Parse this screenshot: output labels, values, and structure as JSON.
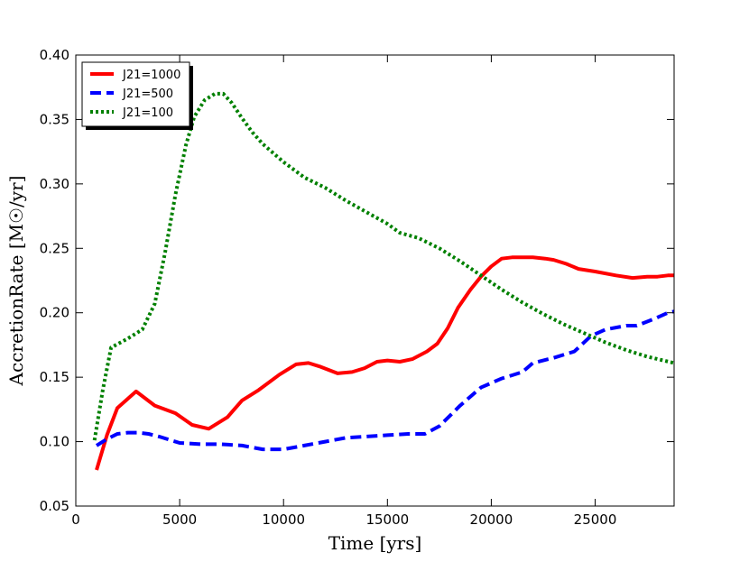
{
  "chart_data": {
    "type": "line",
    "xlabel": "Time [yrs]",
    "ylabel": "AccretionRate [M☉/yr]",
    "xlim": [
      0,
      28800
    ],
    "ylim": [
      0.05,
      0.4
    ],
    "xticks": [
      0,
      5000,
      10000,
      15000,
      20000,
      25000
    ],
    "xtick_labels": [
      "0",
      "5000",
      "10000",
      "15000",
      "20000",
      "25000"
    ],
    "yticks": [
      0.05,
      0.1,
      0.15,
      0.2,
      0.25,
      0.3,
      0.35,
      0.4
    ],
    "ytick_labels": [
      "0.05",
      "0.10",
      "0.15",
      "0.20",
      "0.25",
      "0.30",
      "0.35",
      "0.40"
    ],
    "grid": false,
    "legend_position": "top-left",
    "series": [
      {
        "name": "J21=1000",
        "color": "#ff0000",
        "style": "solid",
        "x": [
          1000,
          1500,
          2000,
          2900,
          3800,
          4800,
          5600,
          6400,
          7300,
          8000,
          8800,
          9800,
          10600,
          11200,
          11800,
          12600,
          13300,
          13900,
          14500,
          15000,
          15600,
          16200,
          16900,
          17400,
          17900,
          18400,
          19000,
          19500,
          20000,
          20500,
          21000,
          21500,
          22000,
          22600,
          23000,
          23600,
          24200,
          25000,
          26000,
          26800,
          27500,
          28000,
          28500,
          28800
        ],
        "y": [
          0.078,
          0.105,
          0.126,
          0.139,
          0.128,
          0.122,
          0.113,
          0.11,
          0.119,
          0.132,
          0.14,
          0.152,
          0.16,
          0.161,
          0.158,
          0.153,
          0.154,
          0.157,
          0.162,
          0.163,
          0.162,
          0.164,
          0.17,
          0.176,
          0.188,
          0.204,
          0.218,
          0.228,
          0.236,
          0.242,
          0.243,
          0.243,
          0.243,
          0.242,
          0.241,
          0.238,
          0.234,
          0.232,
          0.229,
          0.227,
          0.228,
          0.228,
          0.229,
          0.229
        ]
      },
      {
        "name": "J21=500",
        "color": "#0000ff",
        "style": "dashed",
        "x": [
          1000,
          1500,
          2000,
          2500,
          3000,
          3500,
          4000,
          5000,
          6000,
          7000,
          8000,
          9000,
          10000,
          11000,
          12000,
          13000,
          14000,
          15000,
          16000,
          16800,
          17500,
          18500,
          19500,
          20500,
          21500,
          22000,
          23000,
          24000,
          24800,
          25500,
          26500,
          27000,
          27800,
          28500,
          28800
        ],
        "y": [
          0.097,
          0.102,
          0.106,
          0.107,
          0.107,
          0.106,
          0.104,
          0.099,
          0.098,
          0.098,
          0.097,
          0.094,
          0.094,
          0.097,
          0.1,
          0.103,
          0.104,
          0.105,
          0.106,
          0.106,
          0.112,
          0.128,
          0.142,
          0.149,
          0.154,
          0.161,
          0.165,
          0.17,
          0.182,
          0.187,
          0.19,
          0.19,
          0.195,
          0.2,
          0.201
        ]
      },
      {
        "name": "J21=100",
        "color": "#008000",
        "style": "dotted",
        "x": [
          900,
          1300,
          1700,
          2500,
          3200,
          3800,
          4300,
          4800,
          5300,
          5700,
          6200,
          6700,
          7100,
          7500,
          8000,
          8500,
          9000,
          10000,
          11000,
          12000,
          13000,
          14000,
          15000,
          15600,
          16500,
          17500,
          18500,
          19500,
          20500,
          21500,
          22500,
          23500,
          24500,
          25500,
          26500,
          27500,
          28800
        ],
        "y": [
          0.101,
          0.14,
          0.173,
          0.18,
          0.187,
          0.207,
          0.247,
          0.292,
          0.33,
          0.352,
          0.365,
          0.37,
          0.37,
          0.363,
          0.351,
          0.34,
          0.331,
          0.317,
          0.305,
          0.297,
          0.287,
          0.278,
          0.269,
          0.262,
          0.258,
          0.25,
          0.24,
          0.229,
          0.218,
          0.208,
          0.199,
          0.191,
          0.184,
          0.177,
          0.171,
          0.166,
          0.161
        ]
      }
    ]
  }
}
